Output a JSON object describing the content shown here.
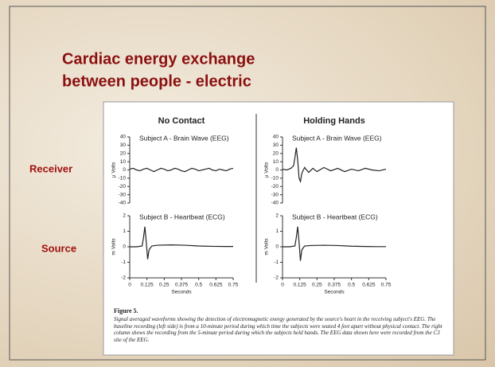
{
  "slide_title": [
    "Cardiac energy exchange",
    "between people - electric"
  ],
  "column_headers": [
    "No Contact",
    "Holding Hands"
  ],
  "row_labels": [
    "Receiver",
    "Source"
  ],
  "figure_label": "Figure 5.",
  "caption": "Signal averaged waveforms showing the detection of electromagnetic energy generated by the source's heart in the receiving subject's EEG. The baseline recording (left side) is from a 10-minute period during which time the subjects were seated 4 feet apart without physical contact. The right column shows the recording from the 5-minute period during which the subjects held hands. The EEG data shown here were recorded from the C3 site of the EEG.",
  "chart_data": [
    {
      "type": "line",
      "title": "Subject A - Brain Wave (EEG)",
      "y_label": "µ Volts",
      "color": "#222222",
      "x": [
        0,
        0.025,
        0.05,
        0.075,
        0.1,
        0.125,
        0.15,
        0.175,
        0.2,
        0.225,
        0.25,
        0.275,
        0.3,
        0.325,
        0.35,
        0.375,
        0.4,
        0.425,
        0.45,
        0.475,
        0.5,
        0.525,
        0.55,
        0.575,
        0.6,
        0.625,
        0.65,
        0.675,
        0.7,
        0.725,
        0.75
      ],
      "values": [
        1,
        2,
        0,
        -1,
        1,
        2,
        0,
        -2,
        0,
        2,
        1,
        -1,
        0,
        2,
        1,
        -1,
        -2,
        0,
        2,
        1,
        -1,
        0,
        1,
        2,
        0,
        -1,
        1,
        0,
        -1,
        1,
        2
      ],
      "xlim": [
        0,
        0.75
      ],
      "ylim": [
        -40,
        40
      ],
      "yticks": [
        40,
        30,
        20,
        10,
        0,
        -10,
        -20,
        -30,
        -40
      ]
    },
    {
      "type": "line",
      "title": "Subject A - Brain Wave (EEG)",
      "y_label": "µ Volts",
      "color": "#222222",
      "x": [
        0,
        0.03,
        0.06,
        0.08,
        0.09,
        0.1,
        0.11,
        0.12,
        0.13,
        0.14,
        0.16,
        0.19,
        0.22,
        0.25,
        0.3,
        0.35,
        0.4,
        0.45,
        0.5,
        0.55,
        0.6,
        0.65,
        0.7,
        0.75
      ],
      "values": [
        1,
        0,
        2,
        5,
        15,
        27,
        12,
        -10,
        -14,
        -4,
        3,
        -3,
        2,
        -2,
        3,
        -1,
        2,
        -2,
        1,
        -1,
        2,
        0,
        -1,
        1
      ],
      "xlim": [
        0,
        0.75
      ],
      "ylim": [
        -40,
        40
      ],
      "yticks": [
        40,
        30,
        20,
        10,
        0,
        -10,
        -20,
        -30,
        -40
      ]
    },
    {
      "type": "line",
      "title": "Subject B - Heartbeat (ECG)",
      "y_label": "m Volts",
      "x_label": "Seconds",
      "color": "#222222",
      "x": [
        0,
        0.05,
        0.09,
        0.1,
        0.11,
        0.12,
        0.13,
        0.14,
        0.16,
        0.2,
        0.3,
        0.4,
        0.5,
        0.6,
        0.7,
        0.75
      ],
      "values": [
        0,
        0,
        0.05,
        0.6,
        1.3,
        0.3,
        -0.8,
        -0.2,
        0.05,
        0.1,
        0.12,
        0.1,
        0.05,
        0.03,
        0.02,
        0.02
      ],
      "xlim": [
        0,
        0.75
      ],
      "ylim": [
        -2,
        2
      ],
      "yticks": [
        2,
        1,
        0,
        -1,
        -2
      ],
      "xticks": [
        0,
        0.125,
        0.25,
        0.375,
        0.5,
        0.625,
        0.75
      ]
    },
    {
      "type": "line",
      "title": "Subject B - Heartbeat (ECG)",
      "y_label": "m Volts",
      "x_label": "Seconds",
      "color": "#222222",
      "x": [
        0,
        0.05,
        0.09,
        0.1,
        0.11,
        0.12,
        0.13,
        0.14,
        0.16,
        0.2,
        0.3,
        0.4,
        0.5,
        0.6,
        0.7,
        0.75
      ],
      "values": [
        0,
        0,
        0.05,
        0.6,
        1.3,
        0.3,
        -0.9,
        -0.2,
        0.05,
        0.08,
        0.1,
        0.08,
        0.04,
        0.02,
        0.01,
        0.01
      ],
      "xlim": [
        0,
        0.75
      ],
      "ylim": [
        -2,
        2
      ],
      "yticks": [
        2,
        1,
        0,
        -1,
        -2
      ],
      "xticks": [
        0,
        0.125,
        0.25,
        0.375,
        0.5,
        0.625,
        0.75
      ]
    }
  ]
}
